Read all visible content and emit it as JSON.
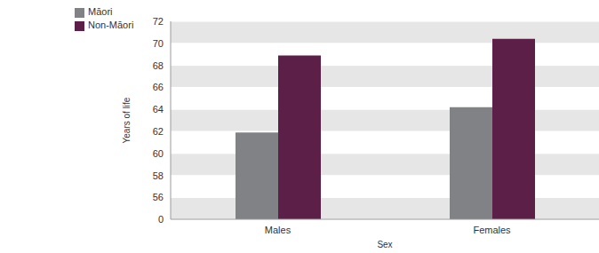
{
  "chart_data": {
    "type": "bar",
    "x_label": "Sex",
    "y_label": "Years of life",
    "categories": [
      "Males",
      "Females"
    ],
    "series": [
      {
        "name": "Māori",
        "color": "#808285",
        "values": [
          61.9,
          64.2
        ]
      },
      {
        "name": "Non-Māori",
        "color": "#5c1f47",
        "values": [
          68.9,
          70.4
        ]
      }
    ],
    "ylim": [
      0,
      72
    ],
    "yticks": [
      0,
      56,
      58,
      60,
      62,
      64,
      66,
      68,
      70,
      72
    ],
    "grid": true,
    "legend": "top-left"
  }
}
